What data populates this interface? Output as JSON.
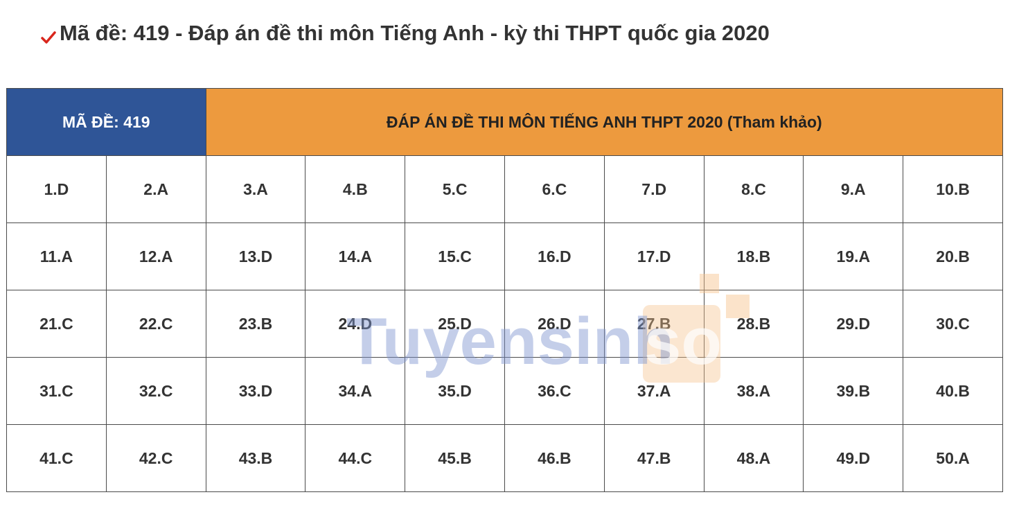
{
  "title": "Mã đề: 419 - Đáp án đề thi môn Tiếng Anh - kỳ thi THPT quốc gia 2020",
  "table": {
    "header": [
      "MÃ ĐỀ: 419",
      "ĐÁP ÁN ĐỀ THI MÔN TIẾNG ANH THPT 2020 (Tham khảo)"
    ],
    "rows": [
      [
        "1.D",
        "2.A",
        "3.A",
        "4.B",
        "5.C",
        "6.C",
        "7.D",
        "8.C",
        "9.A",
        "10.B"
      ],
      [
        "11.A",
        "12.A",
        "13.D",
        "14.A",
        "15.C",
        "16.D",
        "17.D",
        "18.B",
        "19.A",
        "20.B"
      ],
      [
        "21.C",
        "22.C",
        "23.B",
        "24.D",
        "25.D",
        "26.D",
        "27.B",
        "28.B",
        "29.D",
        "30.C"
      ],
      [
        "31.C",
        "32.C",
        "33.D",
        "34.A",
        "35.D",
        "36.C",
        "37.A",
        "38.A",
        "39.B",
        "40.B"
      ],
      [
        "41.C",
        "42.C",
        "43.B",
        "44.C",
        "45.B",
        "46.B",
        "47.B",
        "48.A",
        "49.D",
        "50.A"
      ]
    ]
  },
  "watermark": [
    "Tuyensinh",
    "so"
  ]
}
